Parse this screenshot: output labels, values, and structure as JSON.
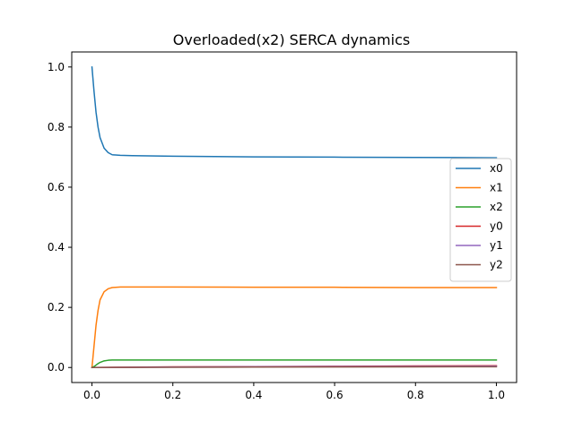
{
  "chart_data": {
    "type": "line",
    "title": "Overloaded(x2) SERCA dynamics",
    "xlabel": "",
    "ylabel": "",
    "xlim": [
      -0.05,
      1.05
    ],
    "ylim": [
      -0.05,
      1.05
    ],
    "xticks": [
      0.0,
      0.2,
      0.4,
      0.6,
      0.8,
      1.0
    ],
    "xtick_labels": [
      "0.0",
      "0.2",
      "0.4",
      "0.6",
      "0.8",
      "1.0"
    ],
    "yticks": [
      0.0,
      0.2,
      0.4,
      0.6,
      0.8,
      1.0
    ],
    "ytick_labels": [
      "0.0",
      "0.2",
      "0.4",
      "0.6",
      "0.8",
      "1.0"
    ],
    "grid": false,
    "legend_position": "center-right",
    "series": [
      {
        "name": "x0",
        "color": "#1f77b4",
        "x": [
          0.0,
          0.005,
          0.01,
          0.015,
          0.02,
          0.03,
          0.04,
          0.05,
          0.07,
          0.1,
          0.2,
          0.4,
          0.6,
          0.8,
          1.0
        ],
        "y": [
          1.0,
          0.92,
          0.85,
          0.8,
          0.765,
          0.73,
          0.715,
          0.708,
          0.706,
          0.705,
          0.703,
          0.701,
          0.7,
          0.699,
          0.698
        ]
      },
      {
        "name": "x1",
        "color": "#ff7f0e",
        "x": [
          0.0,
          0.005,
          0.01,
          0.015,
          0.02,
          0.03,
          0.04,
          0.05,
          0.07,
          0.1,
          0.2,
          0.4,
          0.6,
          0.8,
          1.0
        ],
        "y": [
          0.0,
          0.07,
          0.14,
          0.19,
          0.225,
          0.252,
          0.262,
          0.266,
          0.268,
          0.268,
          0.268,
          0.267,
          0.267,
          0.266,
          0.266
        ]
      },
      {
        "name": "x2",
        "color": "#2ca02c",
        "x": [
          0.0,
          0.005,
          0.01,
          0.015,
          0.02,
          0.03,
          0.04,
          0.05,
          0.07,
          0.1,
          0.2,
          0.4,
          0.6,
          0.8,
          1.0
        ],
        "y": [
          0.0,
          0.003,
          0.008,
          0.013,
          0.017,
          0.022,
          0.024,
          0.025,
          0.025,
          0.025,
          0.025,
          0.025,
          0.025,
          0.025,
          0.025
        ]
      },
      {
        "name": "y0",
        "color": "#d62728",
        "x": [
          0.0,
          0.1,
          0.2,
          0.4,
          0.6,
          0.8,
          1.0
        ],
        "y": [
          0.0,
          0.001,
          0.002,
          0.003,
          0.004,
          0.005,
          0.006
        ]
      },
      {
        "name": "y1",
        "color": "#9467bd",
        "x": [
          0.0,
          0.1,
          0.2,
          0.4,
          0.6,
          0.8,
          1.0
        ],
        "y": [
          0.0,
          0.0007,
          0.0014,
          0.0024,
          0.0032,
          0.0038,
          0.0043
        ]
      },
      {
        "name": "y2",
        "color": "#8c564b",
        "x": [
          0.0,
          0.1,
          0.2,
          0.4,
          0.6,
          0.8,
          1.0
        ],
        "y": [
          0.0,
          0.0004,
          0.0008,
          0.0014,
          0.0019,
          0.0023,
          0.0026
        ]
      }
    ]
  }
}
